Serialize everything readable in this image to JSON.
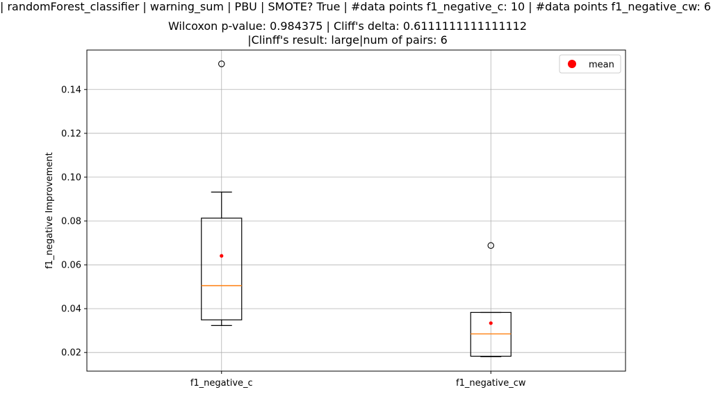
{
  "title": {
    "line1": "| randomForest_classifier | warning_sum | PBU | SMOTE? True | #data points f1_negative_c: 10 | #data points f1_negative_cw: 6",
    "line2": "Wilcoxon p-value: 0.984375 | Cliff's delta: 0.6111111111111112",
    "line3": "|Clinff's result: large|num of pairs: 6"
  },
  "chart_data": {
    "type": "box",
    "ylabel": "f1_negative Improvement",
    "xlabel": "",
    "ylim": [
      0.0115,
      0.158
    ],
    "yticks": [
      0.02,
      0.04,
      0.06,
      0.08,
      0.1,
      0.12,
      0.14
    ],
    "ytick_labels": [
      "0.02",
      "0.04",
      "0.06",
      "0.08",
      "0.10",
      "0.12",
      "0.14"
    ],
    "grid": true,
    "legend": {
      "placement": "upper-right",
      "entries": [
        {
          "label": "mean",
          "marker": "circle",
          "color": "#ff0000"
        }
      ]
    },
    "boxes": [
      {
        "category": "f1_negative_c",
        "whisker_low": 0.0323,
        "q1": 0.0349,
        "median": 0.0505,
        "q3": 0.0813,
        "whisker_high": 0.0932,
        "mean": 0.0641,
        "outliers": [
          0.1517
        ]
      },
      {
        "category": "f1_negative_cw",
        "whisker_low": 0.0181,
        "q1": 0.0183,
        "median": 0.0285,
        "q3": 0.0383,
        "whisker_high": 0.0383,
        "mean": 0.0334,
        "outliers": [
          0.0688
        ]
      }
    ],
    "colors": {
      "box": "#000000",
      "median": "#ff7f0e",
      "mean": "#ff0000",
      "grid": "#b0b0b0",
      "outlier": "#000000"
    }
  }
}
